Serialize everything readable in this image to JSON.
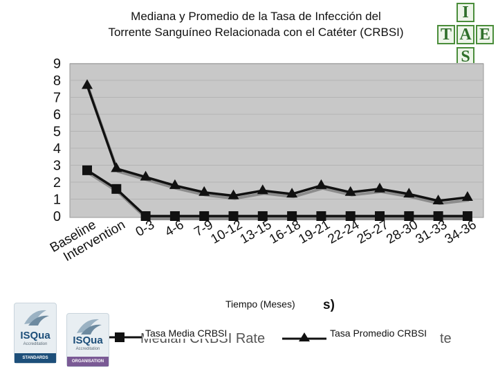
{
  "page": {
    "title_line1": "Mediana y Promedio de la Tasa de Infección del",
    "title_line2": "Torrente Sanguíneo  Relacionada con el Catéter (CRBSI)",
    "legend_marker_ghost": "s)",
    "legend_ghost_left": "Median CRBSI Rate",
    "legend_ghost_right": "te"
  },
  "logos": {
    "ias": {
      "letters": [
        "I",
        "T",
        "A",
        "E",
        "S"
      ],
      "color": "#4a8d3a"
    },
    "badge1": {
      "name": "ISQua",
      "subtitle": "Accreditation",
      "band": "STANDARDS",
      "band_color": "#1d4f7a"
    },
    "badge2": {
      "name": "ISQua",
      "subtitle": "Accreditation",
      "band": "ORGANISATION",
      "band_color": "#7a5a95"
    }
  },
  "chart_data": {
    "type": "line",
    "title": "Mediana y Promedio de la Tasa de Infección del Torrente Sanguíneo  Relacionada con el Catéter (CRBSI)",
    "xlabel": "Tiempo (Meses)",
    "ylabel": "",
    "ylim": [
      0,
      9
    ],
    "yticks": [
      0,
      1,
      2,
      3,
      4,
      5,
      6,
      7,
      8,
      9
    ],
    "grid": true,
    "legend_position": "bottom",
    "categories": [
      "Baseline",
      "Intervention",
      "0-3",
      "4-6",
      "7-9",
      "10-12",
      "13-15",
      "16-18",
      "19-21",
      "22-24",
      "25-27",
      "28-30",
      "31-33",
      "34-36"
    ],
    "series": [
      {
        "name": "Tasa Media CRBSI",
        "marker": "square",
        "color": "#111111",
        "values": [
          2.7,
          1.6,
          0,
          0,
          0,
          0,
          0,
          0,
          0,
          0,
          0,
          0,
          0,
          0
        ]
      },
      {
        "name": "Tasa Promedio CRBSI",
        "marker": "triangle",
        "color": "#111111",
        "values": [
          7.7,
          2.8,
          2.3,
          1.8,
          1.4,
          1.2,
          1.5,
          1.3,
          1.8,
          1.4,
          1.6,
          1.3,
          0.9,
          1.1
        ]
      }
    ],
    "colors": {
      "plot_background": "#c8c8c8",
      "line": "#111111"
    }
  }
}
